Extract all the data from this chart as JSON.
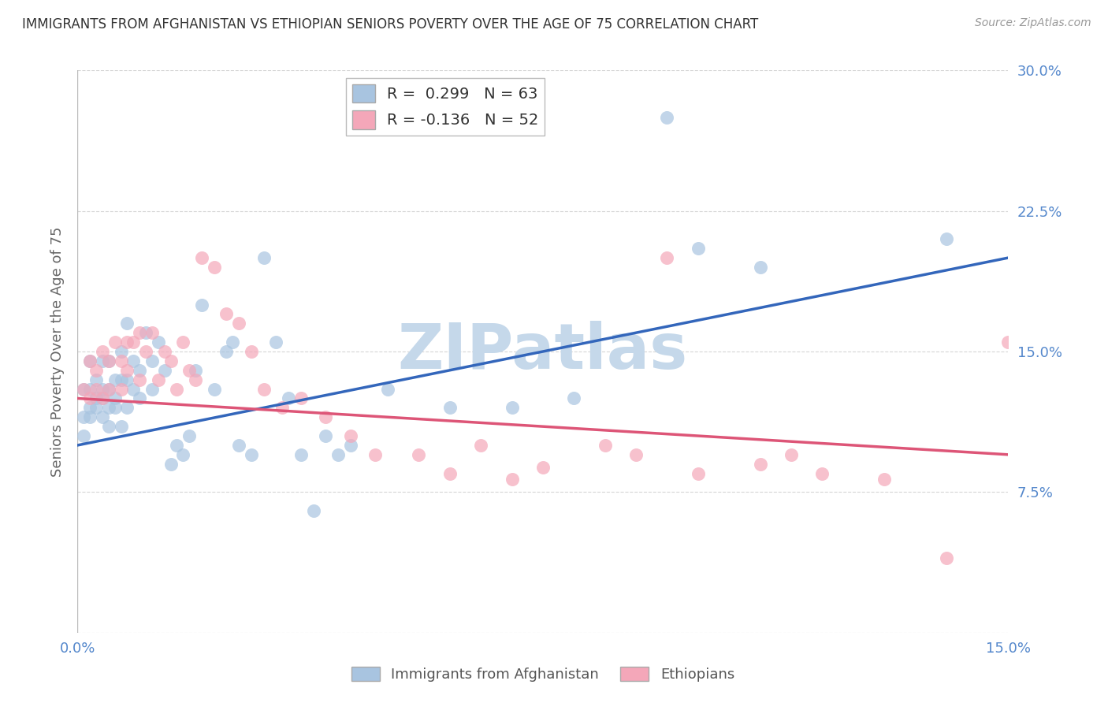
{
  "title": "IMMIGRANTS FROM AFGHANISTAN VS ETHIOPIAN SENIORS POVERTY OVER THE AGE OF 75 CORRELATION CHART",
  "source": "Source: ZipAtlas.com",
  "ylabel": "Seniors Poverty Over the Age of 75",
  "xmin": 0.0,
  "xmax": 0.15,
  "ymin": 0.0,
  "ymax": 0.3,
  "yticks": [
    0.075,
    0.15,
    0.225,
    0.3
  ],
  "ytick_labels": [
    "7.5%",
    "15.0%",
    "22.5%",
    "30.0%"
  ],
  "legend_r1": "R =  0.299   N = 63",
  "legend_r2": "R = -0.136   N = 52",
  "color_blue": "#a8c4e0",
  "color_pink": "#f4a7b9",
  "line_color_blue": "#3366bb",
  "line_color_pink": "#dd5577",
  "watermark_color": "#c5d8ea",
  "background_color": "#ffffff",
  "grid_color": "#cccccc",
  "title_color": "#333333",
  "axis_label_color": "#5588cc",
  "af_line_x0": 0.0,
  "af_line_y0": 0.1,
  "af_line_x1": 0.15,
  "af_line_y1": 0.2,
  "et_line_x0": 0.0,
  "et_line_y0": 0.125,
  "et_line_x1": 0.15,
  "et_line_y1": 0.095,
  "afghanistan_x": [
    0.001,
    0.001,
    0.001,
    0.002,
    0.002,
    0.002,
    0.002,
    0.003,
    0.003,
    0.003,
    0.004,
    0.004,
    0.004,
    0.004,
    0.005,
    0.005,
    0.005,
    0.005,
    0.006,
    0.006,
    0.006,
    0.007,
    0.007,
    0.007,
    0.008,
    0.008,
    0.008,
    0.009,
    0.009,
    0.01,
    0.01,
    0.011,
    0.012,
    0.012,
    0.013,
    0.014,
    0.015,
    0.016,
    0.017,
    0.018,
    0.019,
    0.02,
    0.022,
    0.024,
    0.025,
    0.026,
    0.028,
    0.03,
    0.032,
    0.034,
    0.036,
    0.038,
    0.04,
    0.042,
    0.044,
    0.05,
    0.06,
    0.07,
    0.08,
    0.095,
    0.1,
    0.11,
    0.14
  ],
  "afghanistan_y": [
    0.115,
    0.13,
    0.105,
    0.12,
    0.13,
    0.145,
    0.115,
    0.125,
    0.135,
    0.12,
    0.13,
    0.145,
    0.125,
    0.115,
    0.13,
    0.145,
    0.12,
    0.11,
    0.135,
    0.125,
    0.12,
    0.15,
    0.135,
    0.11,
    0.165,
    0.135,
    0.12,
    0.145,
    0.13,
    0.14,
    0.125,
    0.16,
    0.145,
    0.13,
    0.155,
    0.14,
    0.09,
    0.1,
    0.095,
    0.105,
    0.14,
    0.175,
    0.13,
    0.15,
    0.155,
    0.1,
    0.095,
    0.2,
    0.155,
    0.125,
    0.095,
    0.065,
    0.105,
    0.095,
    0.1,
    0.13,
    0.12,
    0.12,
    0.125,
    0.275,
    0.205,
    0.195,
    0.21
  ],
  "ethiopian_x": [
    0.001,
    0.002,
    0.002,
    0.003,
    0.003,
    0.004,
    0.004,
    0.005,
    0.005,
    0.006,
    0.007,
    0.007,
    0.008,
    0.008,
    0.009,
    0.01,
    0.01,
    0.011,
    0.012,
    0.013,
    0.014,
    0.015,
    0.016,
    0.017,
    0.018,
    0.019,
    0.02,
    0.022,
    0.024,
    0.026,
    0.028,
    0.03,
    0.033,
    0.036,
    0.04,
    0.044,
    0.048,
    0.055,
    0.06,
    0.065,
    0.07,
    0.075,
    0.085,
    0.09,
    0.095,
    0.1,
    0.11,
    0.115,
    0.12,
    0.13,
    0.14,
    0.15
  ],
  "ethiopian_y": [
    0.13,
    0.145,
    0.125,
    0.14,
    0.13,
    0.15,
    0.125,
    0.145,
    0.13,
    0.155,
    0.145,
    0.13,
    0.155,
    0.14,
    0.155,
    0.16,
    0.135,
    0.15,
    0.16,
    0.135,
    0.15,
    0.145,
    0.13,
    0.155,
    0.14,
    0.135,
    0.2,
    0.195,
    0.17,
    0.165,
    0.15,
    0.13,
    0.12,
    0.125,
    0.115,
    0.105,
    0.095,
    0.095,
    0.085,
    0.1,
    0.082,
    0.088,
    0.1,
    0.095,
    0.2,
    0.085,
    0.09,
    0.095,
    0.085,
    0.082,
    0.04,
    0.155
  ]
}
